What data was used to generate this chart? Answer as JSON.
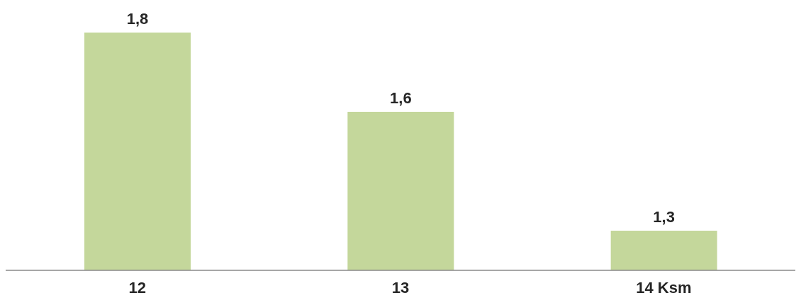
{
  "chart_data": {
    "type": "bar",
    "categories": [
      "12",
      "13",
      "14 Ksm"
    ],
    "values": [
      1.8,
      1.6,
      1.3
    ],
    "color": "#c4d79b",
    "value_labels": [
      "1,8",
      "1,6",
      "1,3"
    ],
    "ylim": [
      1.2,
      1.8
    ],
    "grid": false
  }
}
